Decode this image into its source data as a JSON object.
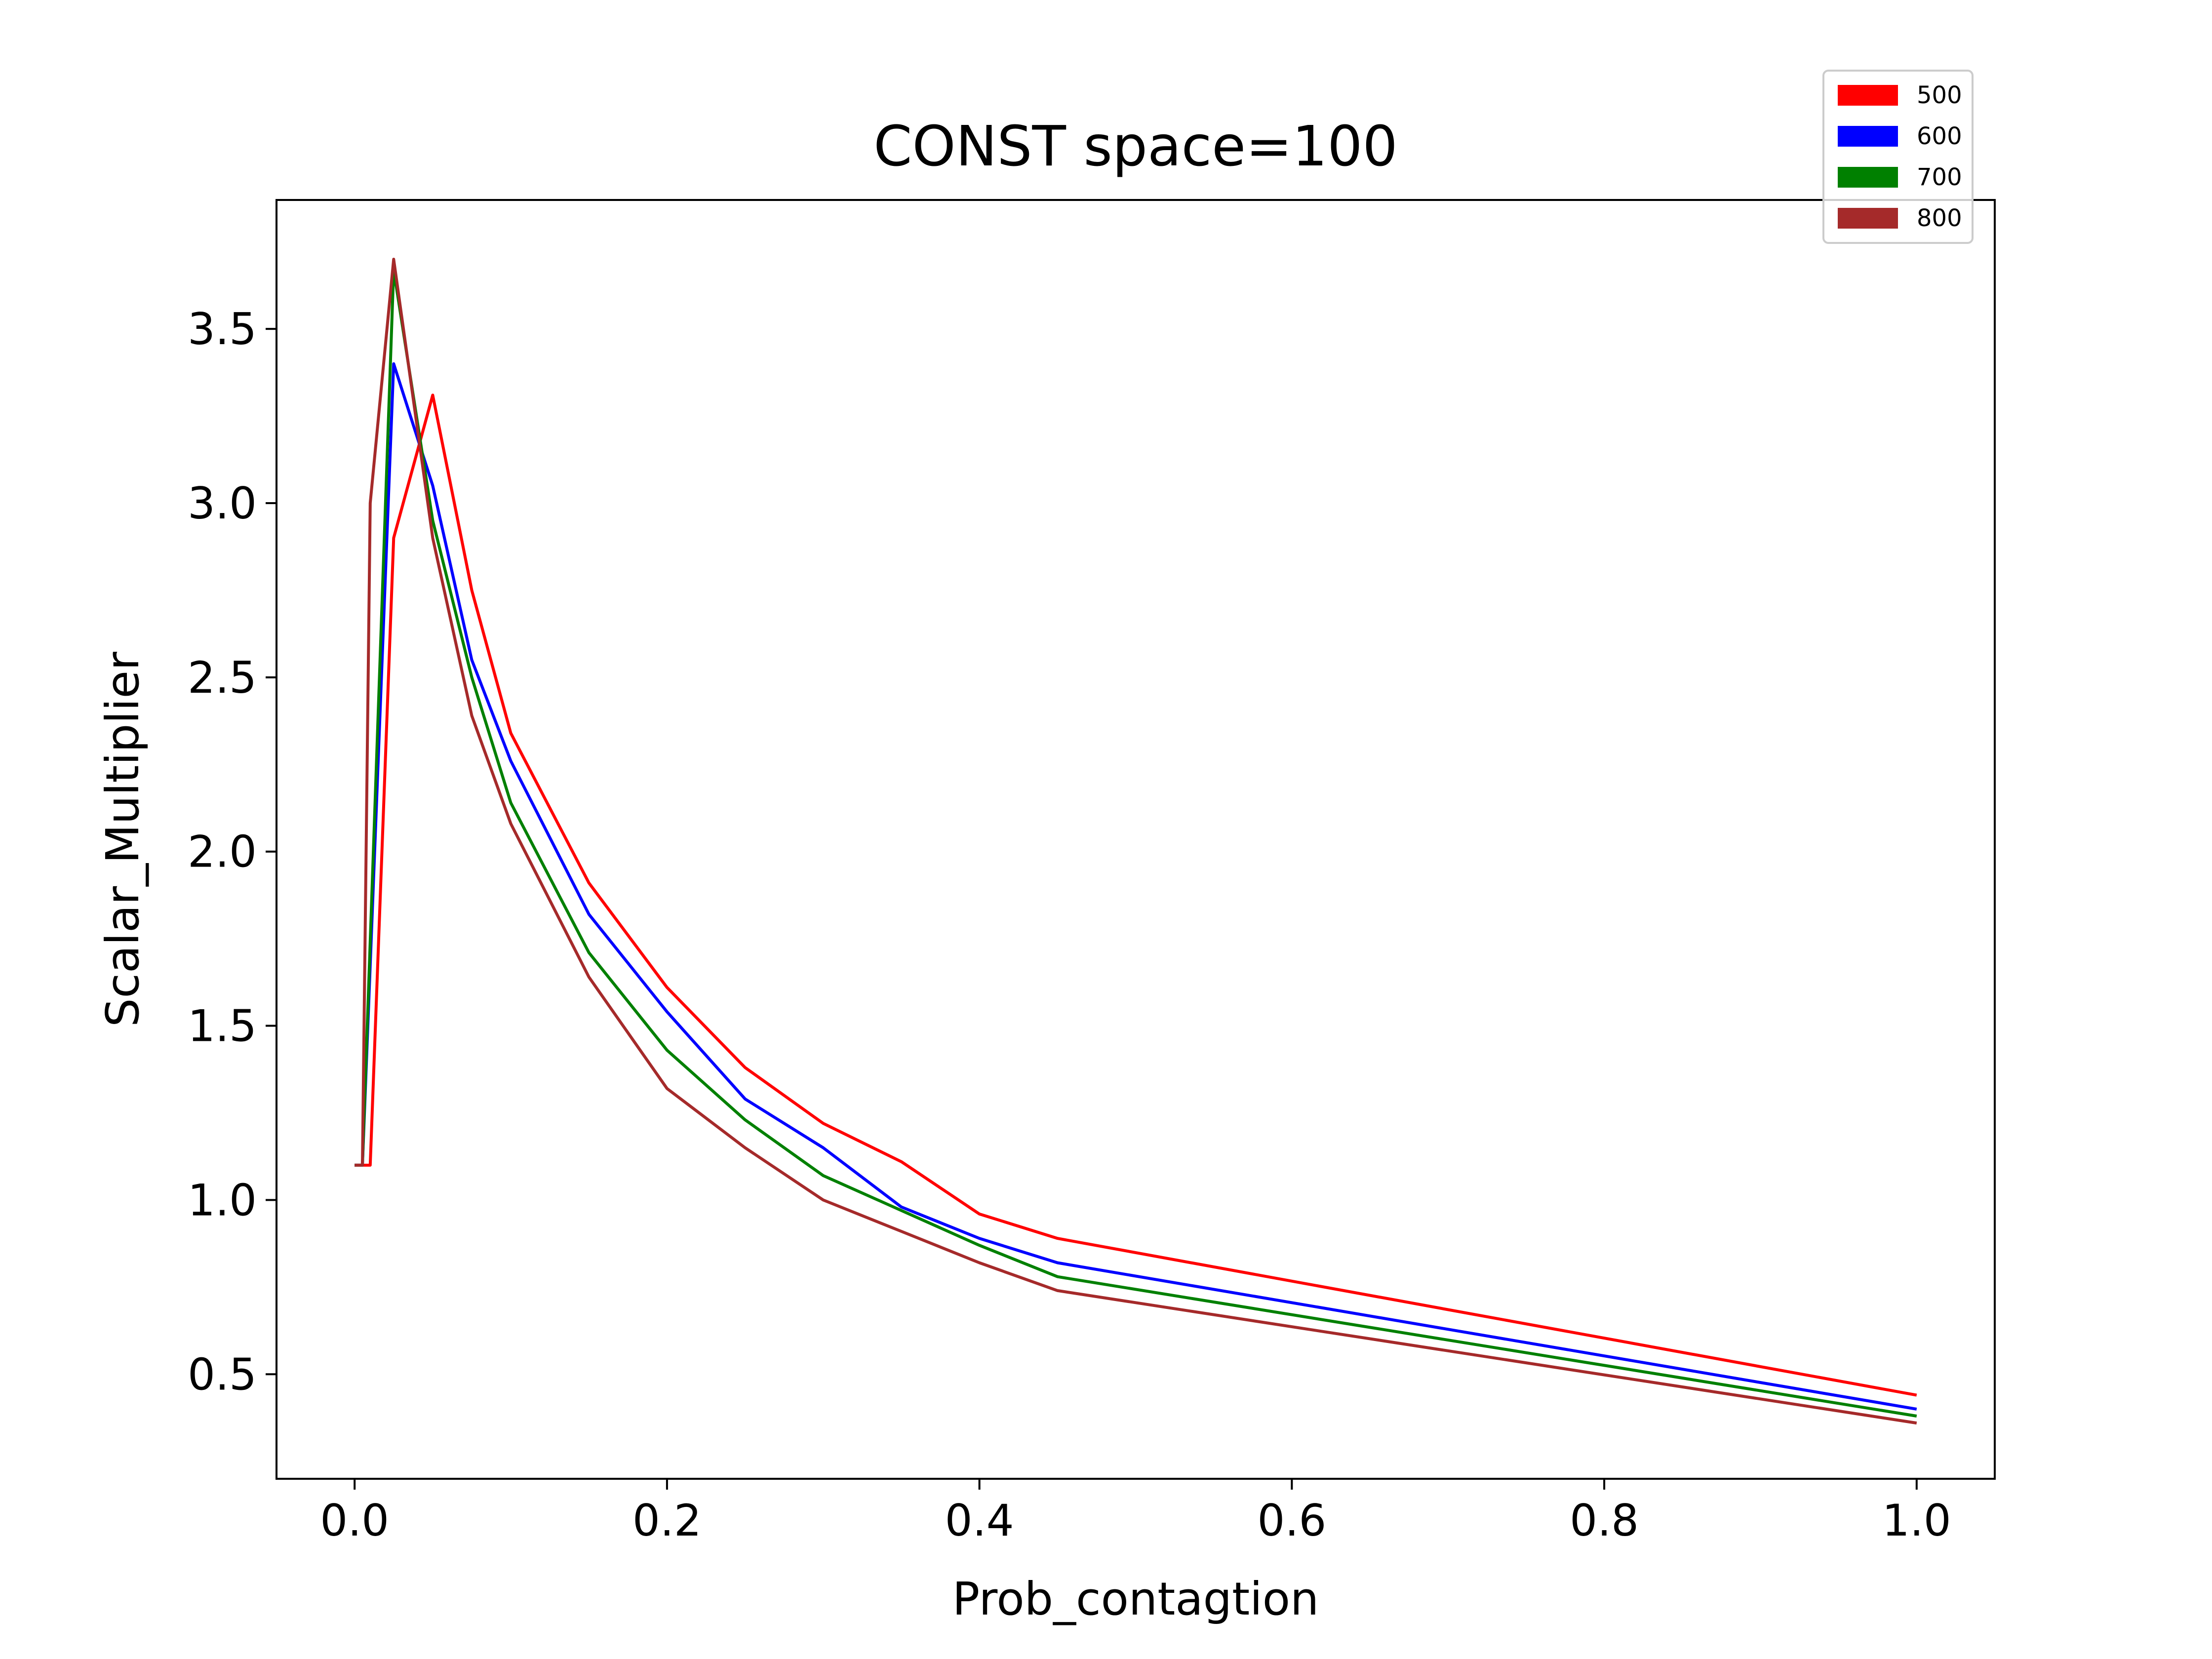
{
  "chart_data": {
    "type": "line",
    "title": "CONST space=100",
    "xlabel": "Prob_contagtion",
    "ylabel": "Scalar_Multiplier",
    "xlim": [
      -0.05,
      1.05
    ],
    "ylim": [
      0.2,
      3.87
    ],
    "xticks": [
      0.0,
      0.2,
      0.4,
      0.6,
      0.8,
      1.0
    ],
    "xtick_labels": [
      "0.0",
      "0.2",
      "0.4",
      "0.6",
      "0.8",
      "1.0"
    ],
    "yticks": [
      0.5,
      1.0,
      1.5,
      2.0,
      2.5,
      3.0,
      3.5
    ],
    "ytick_labels": [
      "0.5",
      "1.0",
      "1.5",
      "2.0",
      "2.5",
      "3.0",
      "3.5"
    ],
    "grid": false,
    "legend_position": "top-right",
    "series": [
      {
        "name": "500",
        "color": "#ff0000",
        "x": [
          0,
          0.005,
          0.01,
          0.025,
          0.05,
          0.075,
          0.1,
          0.15,
          0.2,
          0.25,
          0.3,
          0.35,
          0.4,
          0.45,
          1.0
        ],
        "y": [
          1.1,
          1.1,
          1.1,
          2.9,
          3.31,
          2.75,
          2.34,
          1.91,
          1.61,
          1.38,
          1.22,
          1.11,
          0.96,
          0.89,
          0.44
        ]
      },
      {
        "name": "600",
        "color": "#0000ff",
        "x": [
          0,
          0.005,
          0.025,
          0.05,
          0.075,
          0.1,
          0.15,
          0.2,
          0.25,
          0.3,
          0.35,
          0.4,
          0.45,
          1.0
        ],
        "y": [
          1.1,
          1.1,
          3.4,
          3.05,
          2.55,
          2.26,
          1.82,
          1.54,
          1.29,
          1.15,
          0.98,
          0.89,
          0.82,
          0.4
        ]
      },
      {
        "name": "700",
        "color": "#008000",
        "x": [
          0,
          0.005,
          0.025,
          0.05,
          0.075,
          0.1,
          0.15,
          0.2,
          0.25,
          0.3,
          0.35,
          0.4,
          0.45,
          1.0
        ],
        "y": [
          1.1,
          1.1,
          3.67,
          2.95,
          2.5,
          2.14,
          1.71,
          1.43,
          1.23,
          1.07,
          0.97,
          0.87,
          0.78,
          0.38
        ]
      },
      {
        "name": "800",
        "color": "#a52a2a",
        "x": [
          0,
          0.005,
          0.01,
          0.025,
          0.05,
          0.075,
          0.1,
          0.15,
          0.2,
          0.25,
          0.3,
          0.35,
          0.4,
          0.45,
          1.0
        ],
        "y": [
          1.1,
          1.1,
          3.0,
          3.7,
          2.9,
          2.39,
          2.08,
          1.64,
          1.32,
          1.15,
          1.0,
          0.91,
          0.82,
          0.74,
          0.36
        ]
      }
    ]
  }
}
